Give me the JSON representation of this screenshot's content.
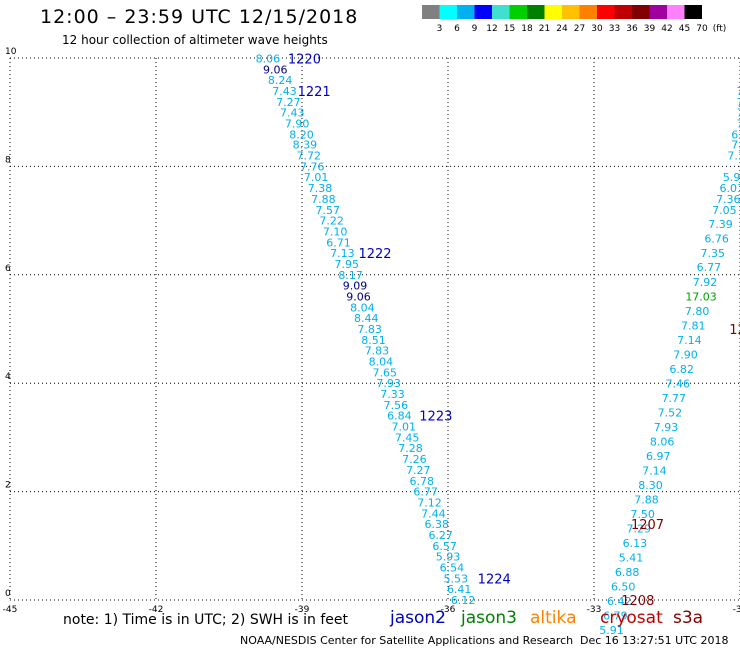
{
  "header": {
    "title": "12:00 – 23:59 UTC 12/15/2018",
    "subtitle": "12 hour collection of altimeter wave heights"
  },
  "colorbar": {
    "colors": [
      "#808080",
      "#00ffff",
      "#00b0f0",
      "#0000ff",
      "#40e0d0",
      "#00d000",
      "#008000",
      "#ffff00",
      "#ffc000",
      "#ff8000",
      "#ff0000",
      "#c00000",
      "#800000",
      "#a000a0",
      "#ff80ff",
      "#000000"
    ],
    "tick_labels": [
      "3",
      "6",
      "9",
      "12",
      "15",
      "18",
      "21",
      "24",
      "27",
      "30",
      "33",
      "36",
      "39",
      "42",
      "45",
      "70",
      "(ft)"
    ]
  },
  "chart_data": {
    "type": "scatter",
    "title": "12 hour collection of altimeter wave heights",
    "xlim": [
      -45,
      -30
    ],
    "ylim": [
      0,
      10
    ],
    "x_ticks": [
      "-45",
      "-42",
      "-39",
      "-36",
      "-33",
      "-30"
    ],
    "y_ticks": [
      "0",
      "2",
      "4",
      "6",
      "8",
      "10"
    ],
    "grid": true,
    "series": [
      {
        "name": "jason2",
        "color": "#00b0f0",
        "points": [
          {
            "x": -39.7,
            "y": 9.99,
            "label": "8.06"
          },
          {
            "x": -39.55,
            "y": 9.79,
            "label": "9.06",
            "color": "#000080"
          },
          {
            "x": -39.45,
            "y": 9.59,
            "label": "8.24"
          },
          {
            "x": -39.36,
            "y": 9.39,
            "label": "7.43"
          },
          {
            "x": -39.28,
            "y": 9.19,
            "label": "7.27"
          },
          {
            "x": -39.2,
            "y": 8.99,
            "label": "7.43"
          },
          {
            "x": -39.1,
            "y": 8.79,
            "label": "7.90"
          },
          {
            "x": -39.01,
            "y": 8.59,
            "label": "8.20"
          },
          {
            "x": -38.94,
            "y": 8.4,
            "label": "8.39"
          },
          {
            "x": -38.86,
            "y": 8.2,
            "label": "7.72"
          },
          {
            "x": -38.79,
            "y": 8.0,
            "label": "7.76"
          },
          {
            "x": -38.71,
            "y": 7.8,
            "label": "7.01"
          },
          {
            "x": -38.63,
            "y": 7.6,
            "label": "7.38"
          },
          {
            "x": -38.56,
            "y": 7.4,
            "label": "7.88"
          },
          {
            "x": -38.47,
            "y": 7.2,
            "label": "7.57"
          },
          {
            "x": -38.39,
            "y": 7.0,
            "label": "7.22"
          },
          {
            "x": -38.32,
            "y": 6.8,
            "label": "7.10"
          },
          {
            "x": -38.25,
            "y": 6.6,
            "label": "6.71"
          },
          {
            "x": -38.17,
            "y": 6.4,
            "label": "7.13"
          },
          {
            "x": -38.08,
            "y": 6.2,
            "label": "7.95"
          },
          {
            "x": -38.0,
            "y": 6.0,
            "label": "8.17"
          },
          {
            "x": -37.91,
            "y": 5.8,
            "label": "9.09",
            "color": "#000080"
          },
          {
            "x": -37.84,
            "y": 5.6,
            "label": "9.06",
            "color": "#000080"
          },
          {
            "x": -37.76,
            "y": 5.4,
            "label": "8.04"
          },
          {
            "x": -37.68,
            "y": 5.2,
            "label": "8.44"
          },
          {
            "x": -37.61,
            "y": 5.0,
            "label": "7.83"
          },
          {
            "x": -37.53,
            "y": 4.8,
            "label": "8.51"
          },
          {
            "x": -37.46,
            "y": 4.6,
            "label": "7.83"
          },
          {
            "x": -37.38,
            "y": 4.4,
            "label": "8.04"
          },
          {
            "x": -37.3,
            "y": 4.2,
            "label": "7.65"
          },
          {
            "x": -37.22,
            "y": 4.0,
            "label": "7.93"
          },
          {
            "x": -37.14,
            "y": 3.8,
            "label": "7.33"
          },
          {
            "x": -37.07,
            "y": 3.6,
            "label": "7.56"
          },
          {
            "x": -37.0,
            "y": 3.4,
            "label": "6.84"
          },
          {
            "x": -36.91,
            "y": 3.2,
            "label": "7.01"
          },
          {
            "x": -36.84,
            "y": 3.0,
            "label": "7.45"
          },
          {
            "x": -36.77,
            "y": 2.8,
            "label": "7.28"
          },
          {
            "x": -36.69,
            "y": 2.6,
            "label": "7.26"
          },
          {
            "x": -36.61,
            "y": 2.4,
            "label": "7.27"
          },
          {
            "x": -36.54,
            "y": 2.2,
            "label": "6.78"
          },
          {
            "x": -36.46,
            "y": 2.0,
            "label": "6.77"
          },
          {
            "x": -36.38,
            "y": 1.8,
            "label": "7.12"
          },
          {
            "x": -36.3,
            "y": 1.6,
            "label": "7.44"
          },
          {
            "x": -36.23,
            "y": 1.4,
            "label": "6.38"
          },
          {
            "x": -36.15,
            "y": 1.2,
            "label": "6.27"
          },
          {
            "x": -36.07,
            "y": 1.0,
            "label": "6.57"
          },
          {
            "x": -36.0,
            "y": 0.8,
            "label": "5.93"
          },
          {
            "x": -35.92,
            "y": 0.6,
            "label": "6.54"
          },
          {
            "x": -35.84,
            "y": 0.4,
            "label": "5.53"
          },
          {
            "x": -35.77,
            "y": 0.2,
            "label": "6.41"
          },
          {
            "x": -35.69,
            "y": 0.0,
            "label": "6.12"
          }
        ],
        "time_labels": [
          {
            "x": -38.95,
            "y": 9.99,
            "text": "1220"
          },
          {
            "x": -38.75,
            "y": 9.39,
            "text": "1221"
          },
          {
            "x": -37.5,
            "y": 6.4,
            "text": "1222"
          },
          {
            "x": -36.25,
            "y": 3.4,
            "text": "1223"
          },
          {
            "x": -35.05,
            "y": 0.4,
            "text": "1224"
          }
        ]
      },
      {
        "name": "cryosat",
        "color": "#00b0f0",
        "points": [
          {
            "x": -30.0,
            "y": 9.39,
            "label": "7"
          },
          {
            "x": -30.0,
            "y": 9.19,
            "label": "7"
          },
          {
            "x": -30.0,
            "y": 8.99,
            "label": "7"
          },
          {
            "x": -30.0,
            "y": 8.79,
            "label": "7"
          },
          {
            "x": -30.0,
            "y": 8.59,
            "label": "6.8"
          },
          {
            "x": -30.0,
            "y": 8.4,
            "label": "7.1"
          },
          {
            "x": -30.08,
            "y": 8.2,
            "label": "7.1"
          },
          {
            "x": -30.1,
            "y": 7.8,
            "label": "5.96"
          },
          {
            "x": -30.17,
            "y": 7.6,
            "label": "6.01"
          },
          {
            "x": -30.24,
            "y": 7.4,
            "label": "7.36"
          },
          {
            "x": -30.32,
            "y": 7.2,
            "label": "7.05"
          },
          {
            "x": -30.4,
            "y": 6.94,
            "label": "7.39"
          },
          {
            "x": -30.48,
            "y": 6.67,
            "label": "6.76"
          },
          {
            "x": -30.56,
            "y": 6.4,
            "label": "7.35"
          },
          {
            "x": -30.64,
            "y": 6.14,
            "label": "6.77"
          },
          {
            "x": -30.72,
            "y": 5.87,
            "label": "7.92"
          },
          {
            "x": -30.8,
            "y": 5.6,
            "label": "17.03",
            "color": "#00a000"
          },
          {
            "x": -30.88,
            "y": 5.33,
            "label": "7.80"
          },
          {
            "x": -30.96,
            "y": 5.06,
            "label": "7.81"
          },
          {
            "x": -31.04,
            "y": 4.8,
            "label": "7.14"
          },
          {
            "x": -31.12,
            "y": 4.53,
            "label": "7.90"
          },
          {
            "x": -31.2,
            "y": 4.26,
            "label": "6.82"
          },
          {
            "x": -31.28,
            "y": 3.99,
            "label": "7.46"
          },
          {
            "x": -31.36,
            "y": 3.73,
            "label": "7.77"
          },
          {
            "x": -31.44,
            "y": 3.46,
            "label": "7.52"
          },
          {
            "x": -31.52,
            "y": 3.19,
            "label": "7.93"
          },
          {
            "x": -31.6,
            "y": 2.92,
            "label": "8.06"
          },
          {
            "x": -31.68,
            "y": 2.66,
            "label": "6.97"
          },
          {
            "x": -31.76,
            "y": 2.39,
            "label": "7.14"
          },
          {
            "x": -31.84,
            "y": 2.12,
            "label": "8.30"
          },
          {
            "x": -31.92,
            "y": 1.85,
            "label": "7.88"
          },
          {
            "x": -32.0,
            "y": 1.59,
            "label": "7.50"
          },
          {
            "x": -32.08,
            "y": 1.32,
            "label": "7.29"
          },
          {
            "x": -32.16,
            "y": 1.05,
            "label": "6.13"
          },
          {
            "x": -32.24,
            "y": 0.78,
            "label": "5.41"
          },
          {
            "x": -32.32,
            "y": 0.52,
            "label": "6.88"
          },
          {
            "x": -32.4,
            "y": 0.25,
            "label": "6.50"
          },
          {
            "x": -32.48,
            "y": -0.02,
            "label": "6.42"
          },
          {
            "x": -32.56,
            "y": -0.29,
            "label": "6.79"
          },
          {
            "x": -32.64,
            "y": -0.55,
            "label": "5.91"
          }
        ],
        "time_labels": [
          {
            "x": -30.05,
            "y": 5.0,
            "text": "12"
          },
          {
            "x": -31.9,
            "y": 1.4,
            "text": "1207"
          },
          {
            "x": -32.1,
            "y": 0.0,
            "text": "1208"
          }
        ]
      }
    ]
  },
  "note": "note: 1) Time is in UTC; 2) SWH is in feet",
  "satellites": [
    {
      "name": "jason2",
      "color": "#0000c0"
    },
    {
      "name": "jason3",
      "color": "#008000"
    },
    {
      "name": "altika",
      "color": "#ff8000"
    },
    {
      "name": "cryosat",
      "color": "#c00000"
    },
    {
      "name": "s3a",
      "color": "#800000"
    }
  ],
  "footer": {
    "left": "NOAA/NESDIS Center for Satellite Applications and Research",
    "right": "Dec 16 13:27:51 UTC 2018"
  }
}
